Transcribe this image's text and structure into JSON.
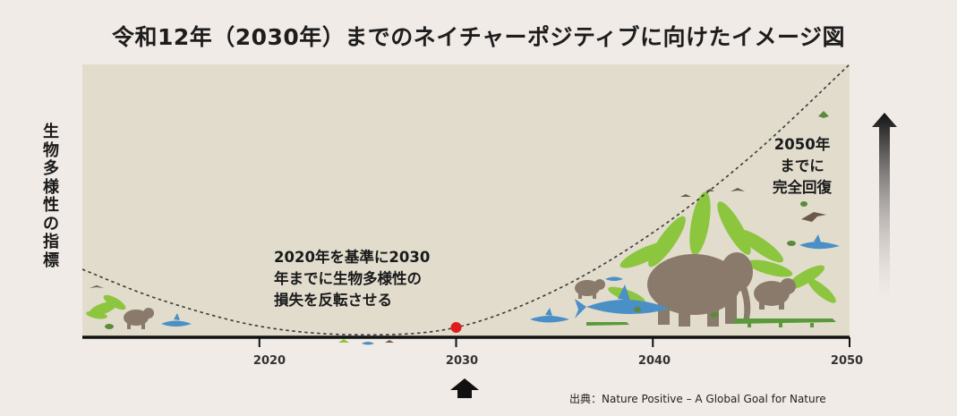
{
  "title": "令和12年（2030年）までのネイチャーポジティブに向けたイメージ図",
  "y_axis_label": [
    "生",
    "物",
    "多",
    "様",
    "性",
    "の",
    "指",
    "標"
  ],
  "x_ticks": [
    "2020",
    "2030",
    "2040",
    "2050"
  ],
  "annotation_2030": [
    "2020年を基準に2030",
    "年までに生物多様性の",
    "損失を反転させる"
  ],
  "annotation_2050": [
    "2050年",
    "までに",
    "完全回復"
  ],
  "source": "出典：Nature Positive – A Global Goal for Nature",
  "colors": {
    "plot_bg": "#e2dccd",
    "page_bg": "#f1ebe7",
    "marker": "#e21c1c",
    "foliage": "#8cc63f",
    "elephant": "#8a7a6b",
    "shark": "#4a8fc6"
  },
  "chart_data": {
    "type": "line",
    "x": [
      2011,
      2015,
      2020,
      2025,
      2030,
      2035,
      2040,
      2045,
      2050
    ],
    "y": [
      0.95,
      0.45,
      0.02,
      -0.12,
      0.0,
      0.6,
      1.55,
      2.8,
      4.3
    ],
    "xlim": [
      2011,
      2050
    ],
    "highlight": {
      "x": 2030,
      "y": 0.0,
      "icons": [
        "up-arrow-icon"
      ]
    },
    "icons": [
      "elephant-icon",
      "shark-icon",
      "crocodile-icon",
      "bird-icon",
      "frog-icon",
      "palm-leaf-icon",
      "gradient-up-arrow-icon"
    ]
  }
}
